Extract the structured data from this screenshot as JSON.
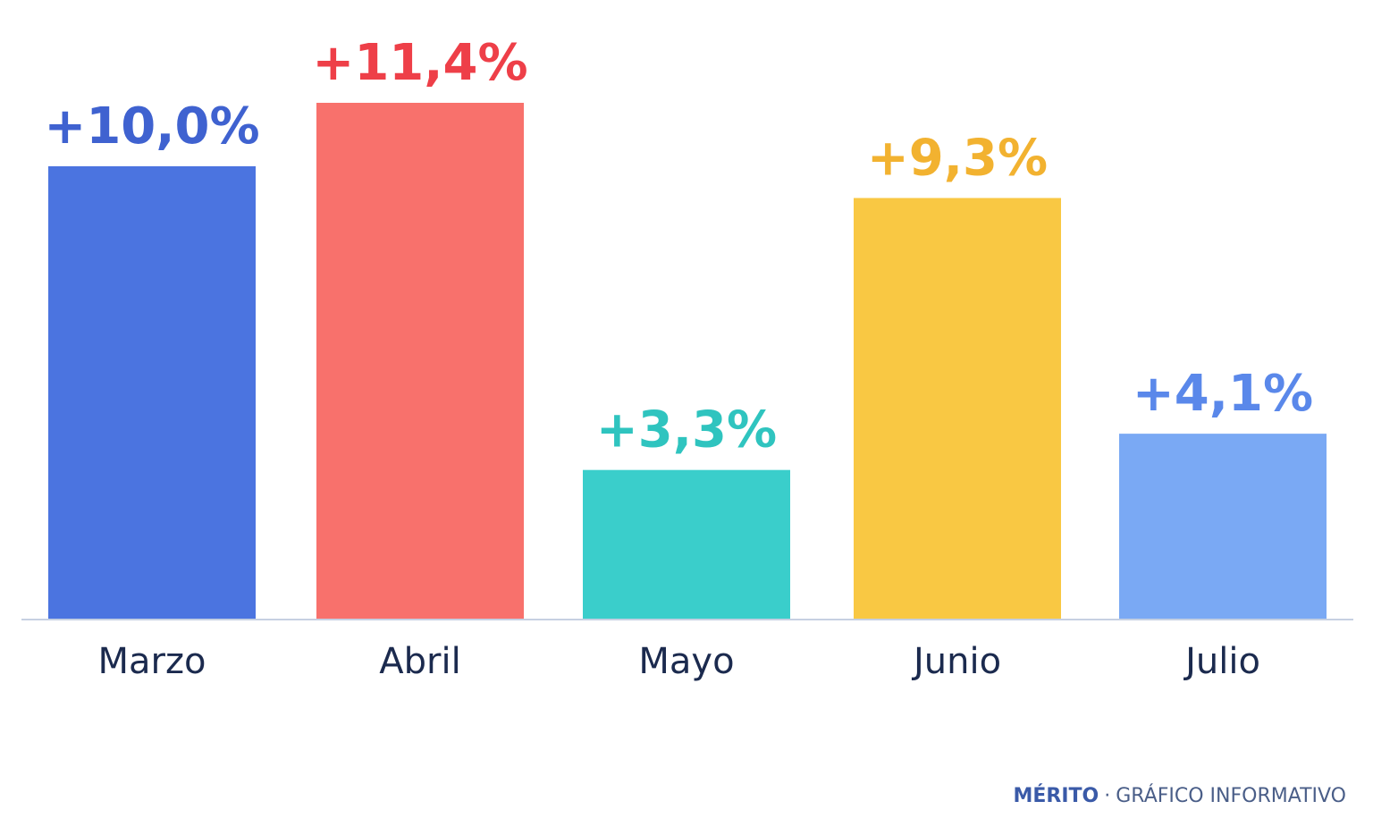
{
  "chart_data": {
    "type": "bar",
    "categories": [
      "Marzo",
      "Abril",
      "Mayo",
      "Junio",
      "Julio"
    ],
    "values": [
      10.0,
      11.4,
      3.3,
      9.3,
      4.1
    ],
    "data_labels": [
      "+10,0%",
      "+11,4%",
      "+3,3%",
      "+9,3%",
      "+4,1%"
    ],
    "colors": [
      "#4b74e0",
      "#f8716c",
      "#3acecb",
      "#f9c843",
      "#7aa9f4"
    ],
    "label_colors": [
      "#3f62d0",
      "#ee3f48",
      "#2fc4bf",
      "#f2b230",
      "#5a88ea"
    ],
    "axis_color": "#c6d0e2",
    "category_label_color": "#1b2a4e",
    "title": "",
    "xlabel": "",
    "ylabel": "",
    "ylim": [
      0,
      11.4
    ],
    "grid": false,
    "legend": "none"
  },
  "footer": {
    "brand": "MÉRITO",
    "separator": "·",
    "caption": "GRÁFICO INFORMATIVO"
  }
}
